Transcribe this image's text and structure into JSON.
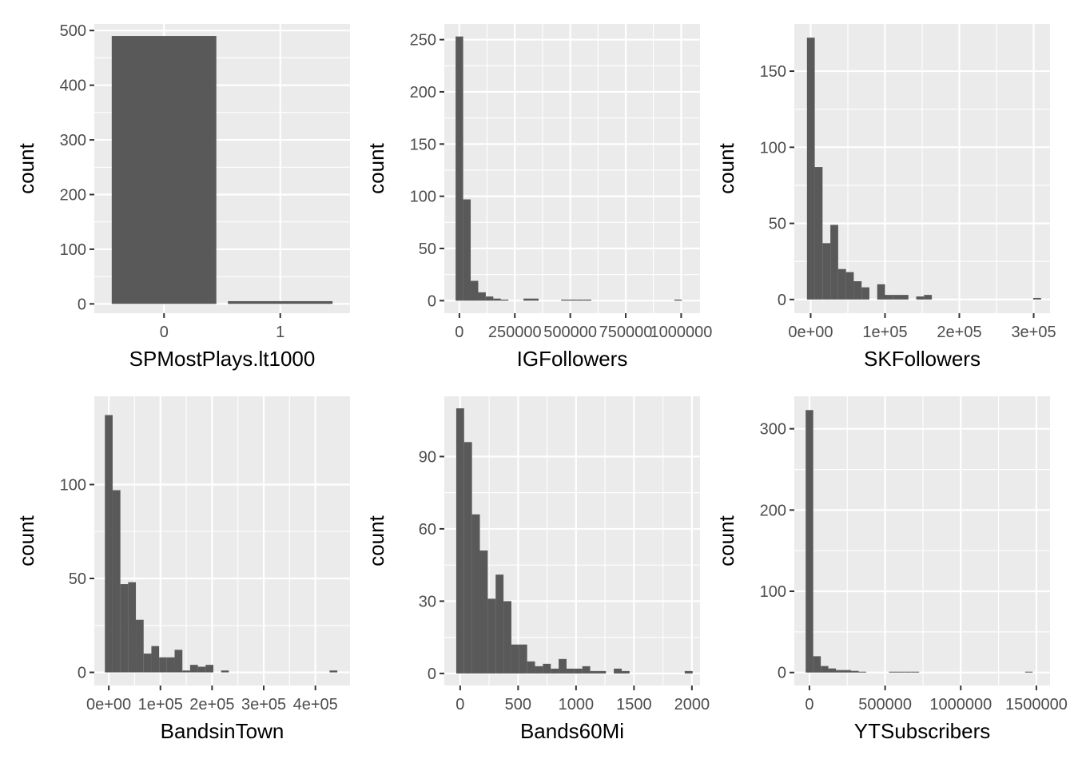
{
  "style": {
    "panel_bg": "#ebebeb",
    "grid_major": "#ffffff",
    "bar_fill": "#595959",
    "tick_text": "#4d4d4d",
    "axis_title": "#000000"
  },
  "chart_data": [
    {
      "type": "bar",
      "xlabel": "SPMostPlays.lt1000",
      "ylabel": "count",
      "categories": [
        "0",
        "1"
      ],
      "values": [
        490,
        5
      ],
      "xlim": [
        -0.6,
        1.6
      ],
      "ylim": [
        -17,
        512
      ],
      "x_ticks": [
        {
          "v": 0,
          "label": "0"
        },
        {
          "v": 1,
          "label": "1"
        }
      ],
      "y_ticks": [
        {
          "v": 0,
          "label": "0"
        },
        {
          "v": 100,
          "label": "100"
        },
        {
          "v": 200,
          "label": "200"
        },
        {
          "v": 300,
          "label": "300"
        },
        {
          "v": 400,
          "label": "400"
        },
        {
          "v": 500,
          "label": "500"
        }
      ],
      "grid": true
    },
    {
      "type": "histogram",
      "xlabel": "IGFollowers",
      "ylabel": "count",
      "bin_start": -17000,
      "bin_width": 34000,
      "counts": [
        253,
        97,
        19,
        8,
        4,
        2,
        1,
        0,
        0,
        2,
        2,
        0,
        0,
        0,
        1,
        1,
        1,
        1,
        0,
        0,
        0,
        0,
        0,
        0,
        0,
        0,
        0,
        0,
        0,
        1
      ],
      "xlim": [
        -68000,
        1085000
      ],
      "ylim": [
        -12,
        265
      ],
      "x_ticks": [
        {
          "v": 0,
          "label": "0"
        },
        {
          "v": 250000,
          "label": "250000"
        },
        {
          "v": 500000,
          "label": "500000"
        },
        {
          "v": 750000,
          "label": "750000"
        },
        {
          "v": 1000000,
          "label": "1000000"
        }
      ],
      "y_ticks": [
        {
          "v": 0,
          "label": "0"
        },
        {
          "v": 50,
          "label": "50"
        },
        {
          "v": 100,
          "label": "100"
        },
        {
          "v": 150,
          "label": "150"
        },
        {
          "v": 200,
          "label": "200"
        },
        {
          "v": 250,
          "label": "250"
        }
      ],
      "grid": true
    },
    {
      "type": "histogram",
      "xlabel": "SKFollowers",
      "ylabel": "count",
      "bin_start": -5000,
      "bin_width": 10500,
      "counts": [
        172,
        87,
        37,
        49,
        20,
        18,
        12,
        8,
        0,
        10,
        3,
        3,
        3,
        0,
        2,
        3,
        0,
        0,
        0,
        0,
        0,
        0,
        0,
        0,
        0,
        0,
        0,
        0,
        0,
        1
      ],
      "xlim": [
        -22000,
        322000
      ],
      "ylim": [
        -9,
        181
      ],
      "x_ticks": [
        {
          "v": 0,
          "label": "0e+00"
        },
        {
          "v": 100000,
          "label": "1e+05"
        },
        {
          "v": 200000,
          "label": "2e+05"
        },
        {
          "v": 300000,
          "label": "3e+05"
        }
      ],
      "y_ticks": [
        {
          "v": 0,
          "label": "0"
        },
        {
          "v": 50,
          "label": "50"
        },
        {
          "v": 100,
          "label": "100"
        },
        {
          "v": 150,
          "label": "150"
        }
      ],
      "grid": true
    },
    {
      "type": "histogram",
      "xlabel": "BandsinTown",
      "ylabel": "count",
      "bin_start": -7500,
      "bin_width": 15000,
      "counts": [
        137,
        97,
        47,
        48,
        28,
        10,
        14,
        8,
        8,
        12,
        1,
        4,
        3,
        4,
        0,
        1,
        0,
        0,
        0,
        0,
        0,
        0,
        0,
        0,
        0,
        0,
        0,
        0,
        0,
        1
      ],
      "xlim": [
        -28000,
        467000
      ],
      "ylim": [
        -7,
        147
      ],
      "x_ticks": [
        {
          "v": 0,
          "label": "0e+00"
        },
        {
          "v": 100000,
          "label": "1e+05"
        },
        {
          "v": 200000,
          "label": "2e+05"
        },
        {
          "v": 300000,
          "label": "3e+05"
        },
        {
          "v": 400000,
          "label": "4e+05"
        }
      ],
      "y_ticks": [
        {
          "v": 0,
          "label": "0"
        },
        {
          "v": 50,
          "label": "50"
        },
        {
          "v": 100,
          "label": "100"
        }
      ],
      "grid": true
    },
    {
      "type": "histogram",
      "xlabel": "Bands60Mi",
      "ylabel": "count",
      "bin_start": -34,
      "bin_width": 68,
      "counts": [
        110,
        96,
        66,
        51,
        31,
        41,
        30,
        12,
        12,
        5,
        3,
        4,
        2,
        6,
        2,
        2,
        3,
        1,
        1,
        0,
        2,
        1,
        0,
        0,
        0,
        0,
        0,
        0,
        0,
        1
      ],
      "xlim": [
        -137,
        2070
      ],
      "ylim": [
        -5,
        115
      ],
      "x_ticks": [
        {
          "v": 0,
          "label": "0"
        },
        {
          "v": 500,
          "label": "500"
        },
        {
          "v": 1000,
          "label": "1000"
        },
        {
          "v": 1500,
          "label": "1500"
        },
        {
          "v": 2000,
          "label": "2000"
        }
      ],
      "y_ticks": [
        {
          "v": 0,
          "label": "0"
        },
        {
          "v": 30,
          "label": "30"
        },
        {
          "v": 60,
          "label": "60"
        },
        {
          "v": 90,
          "label": "90"
        }
      ],
      "grid": true
    },
    {
      "type": "histogram",
      "xlabel": "YTSubscribers",
      "ylabel": "count",
      "bin_start": -25000,
      "bin_width": 50000,
      "counts": [
        323,
        20,
        8,
        5,
        3,
        3,
        2,
        1,
        0,
        0,
        0,
        1,
        1,
        1,
        1,
        0,
        0,
        0,
        0,
        0,
        0,
        0,
        0,
        0,
        0,
        0,
        0,
        0,
        0,
        1
      ],
      "xlim": [
        -100000,
        1590000
      ],
      "ylim": [
        -16,
        340
      ],
      "x_ticks": [
        {
          "v": 0,
          "label": "0"
        },
        {
          "v": 500000,
          "label": "500000"
        },
        {
          "v": 1000000,
          "label": "1000000"
        },
        {
          "v": 1500000,
          "label": "1500000"
        }
      ],
      "y_ticks": [
        {
          "v": 0,
          "label": "0"
        },
        {
          "v": 100,
          "label": "100"
        },
        {
          "v": 200,
          "label": "200"
        },
        {
          "v": 300,
          "label": "300"
        }
      ],
      "grid": true
    }
  ]
}
